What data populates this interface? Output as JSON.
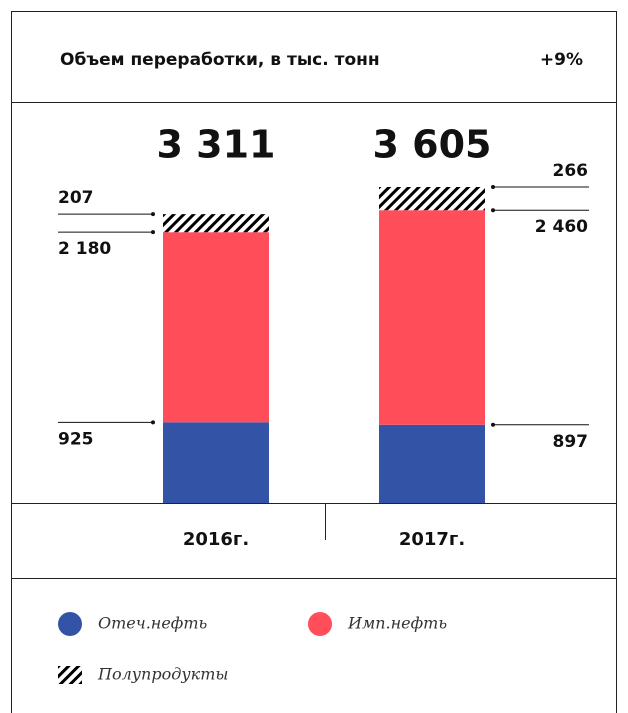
{
  "chart_data": {
    "type": "stacked_bar",
    "title": "Объем переработки, в тыс. тонн",
    "annotation": "+9%",
    "categories": [
      "2016г.",
      "2017г."
    ],
    "totals": [
      {
        "value": 3311,
        "label": "3 311"
      },
      {
        "value": 3605,
        "label": "3 605"
      }
    ],
    "series": [
      {
        "name": "Отеч.нефть",
        "color": "#3354a6",
        "values": [
          925,
          897
        ]
      },
      {
        "name": "Имп.нефть",
        "color": "#ff4d5a",
        "values": [
          2180,
          2460
        ],
        "value_labels": [
          "2 180",
          "2 460"
        ]
      },
      {
        "name": "Полупродукты",
        "color": "#000000",
        "pattern": "hatch",
        "values": [
          207,
          266
        ]
      }
    ]
  }
}
